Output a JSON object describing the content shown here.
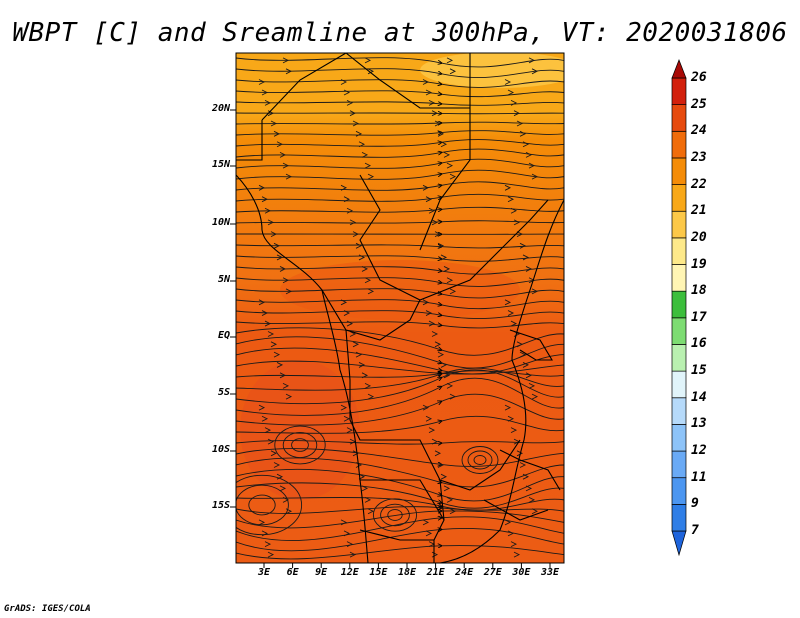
{
  "title": "WBPT [C] and Sreamline at 300hPa, VT: 2020031806",
  "credit": "GrADS: IGES/COLA",
  "lat_ticks": [
    "20N",
    "15N",
    "10N",
    "5N",
    "EQ",
    "5S",
    "10S",
    "15S"
  ],
  "lon_ticks": [
    "3E",
    "6E",
    "9E",
    "12E",
    "15E",
    "18E",
    "21E",
    "24E",
    "27E",
    "30E",
    "33E"
  ],
  "colorbar": {
    "labels": [
      "7",
      "9",
      "11",
      "12",
      "13",
      "14",
      "15",
      "16",
      "17",
      "18",
      "19",
      "20",
      "21",
      "22",
      "23",
      "24",
      "25",
      "26"
    ],
    "colors": [
      "#1e64dc",
      "#2f7ee6",
      "#4c96f0",
      "#6aaaf5",
      "#8dc3f8",
      "#b6dafa",
      "#e1f4fa",
      "#b9f0b0",
      "#7ddc72",
      "#3cbe3c",
      "#fff5b4",
      "#fde98a",
      "#fcc848",
      "#f8a818",
      "#f48c08",
      "#f06c0a",
      "#e64a0e",
      "#d2200c",
      "#a80a06"
    ]
  }
}
